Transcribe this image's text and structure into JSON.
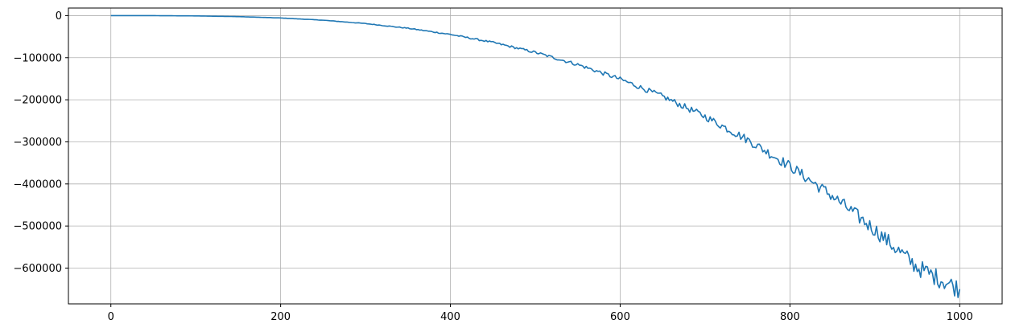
{
  "chart_data": {
    "type": "line",
    "title": "",
    "xlabel": "",
    "ylabel": "",
    "xlim": [
      -50,
      1050
    ],
    "ylim": [
      -685000,
      18000
    ],
    "grid": true,
    "x_ticks": [
      0,
      200,
      400,
      600,
      800,
      1000
    ],
    "x_tick_labels": [
      "0",
      "200",
      "400",
      "600",
      "800",
      "1000"
    ],
    "y_ticks": [
      0,
      -100000,
      -200000,
      -300000,
      -400000,
      -500000,
      -600000
    ],
    "y_tick_labels": [
      "0",
      "−100000",
      "−200000",
      "−300000",
      "−400000",
      "−500000",
      "−600000"
    ],
    "series": [
      {
        "color": "#1f77b4",
        "x": [
          0,
          50,
          100,
          150,
          200,
          250,
          300,
          350,
          400,
          450,
          500,
          550,
          600,
          650,
          700,
          750,
          800,
          850,
          900,
          950,
          1000
        ],
        "y": [
          0,
          -90,
          -700,
          -2400,
          -5600,
          -10900,
          -18900,
          -30000,
          -44700,
          -63700,
          -87400,
          -116300,
          -151000,
          -192000,
          -239800,
          -294900,
          -357700,
          -428900,
          -508900,
          -598200,
          -650000
        ]
      }
    ]
  },
  "colors": {
    "line": "#1f77b4",
    "grid": "#b0b0b0",
    "axis": "#000000",
    "background": "#ffffff"
  }
}
